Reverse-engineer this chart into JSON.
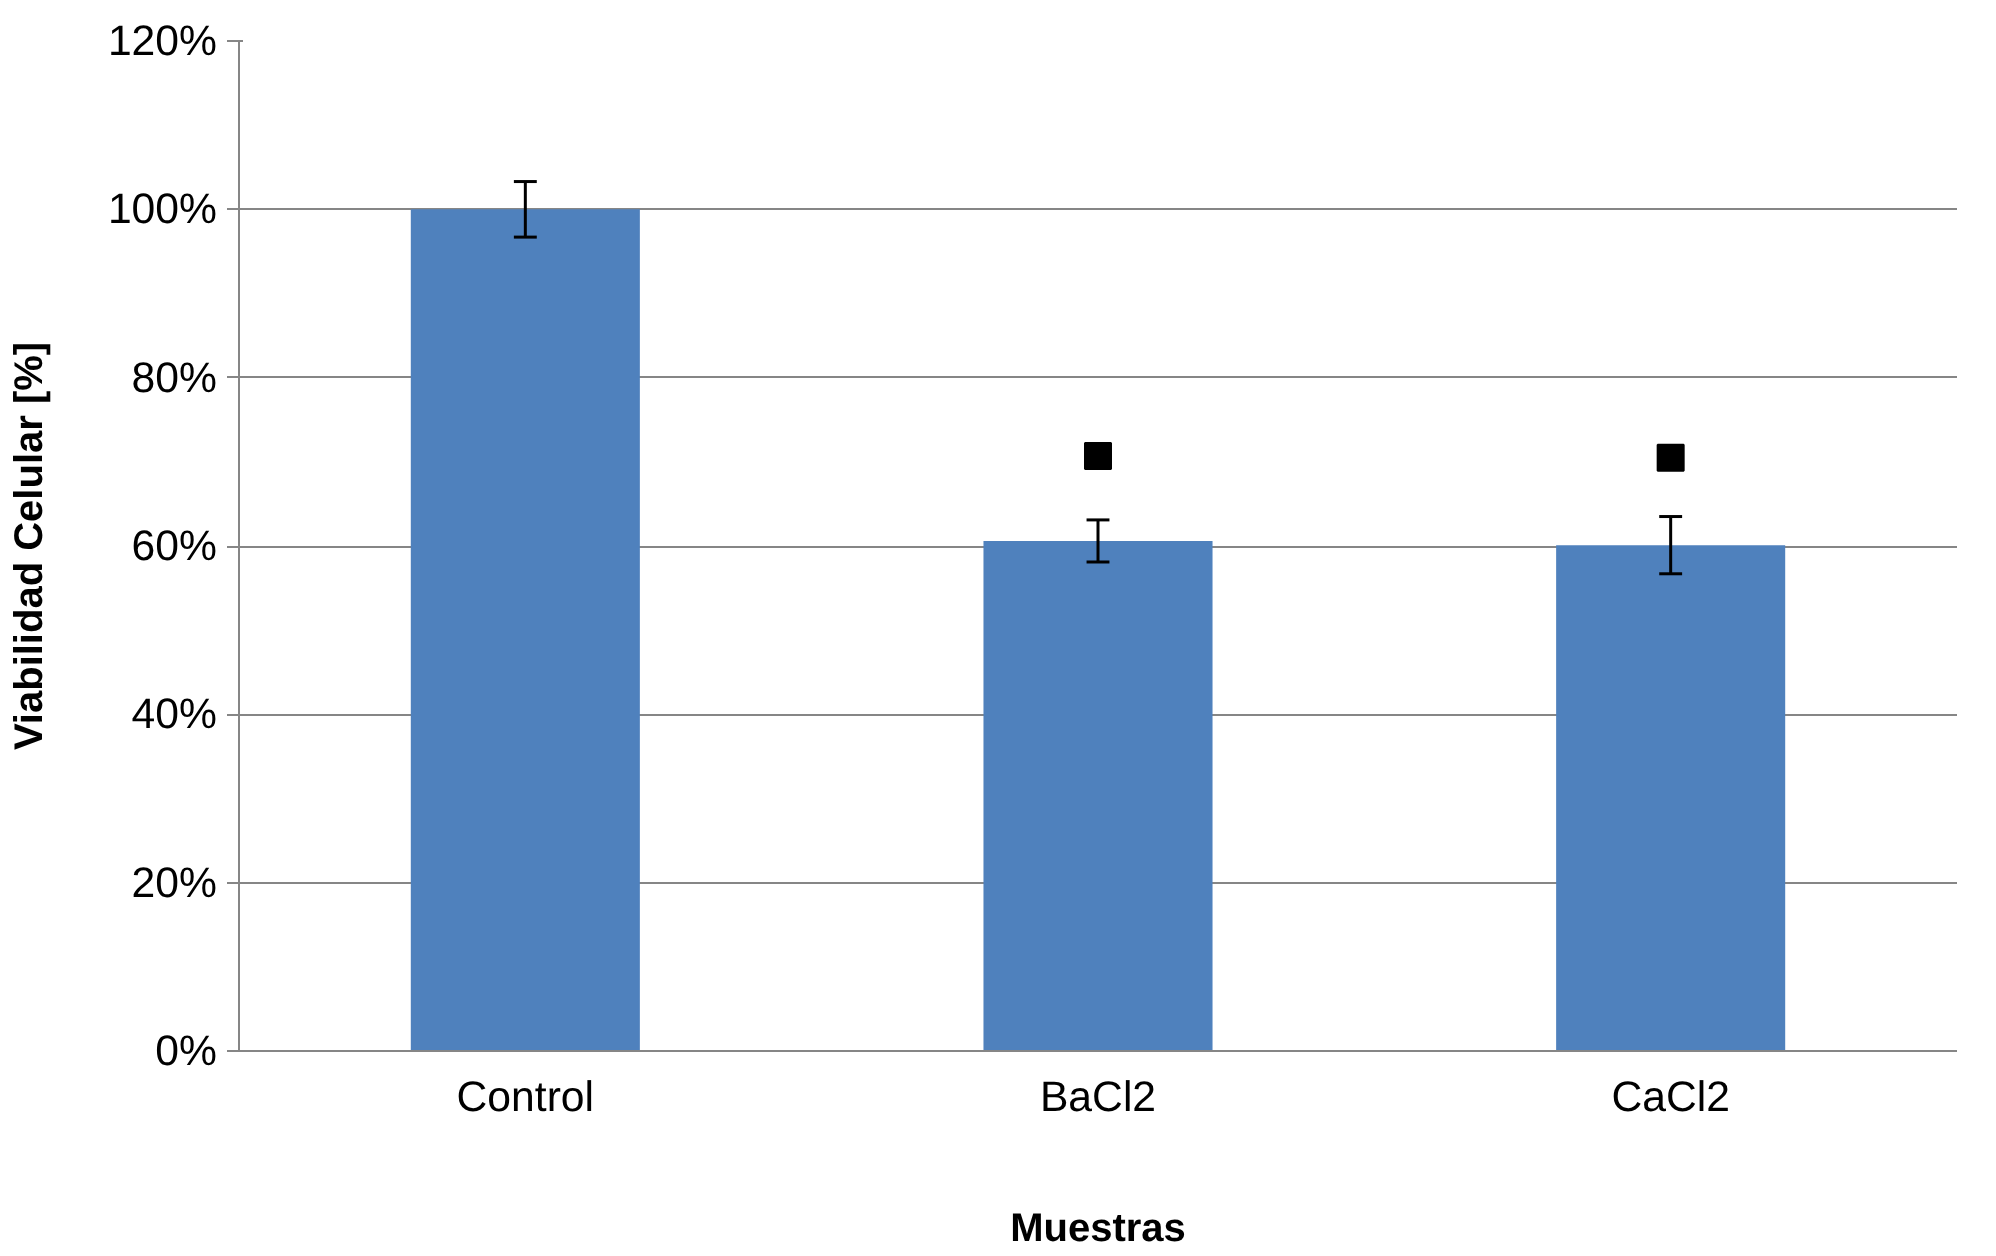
{
  "chart_data": {
    "type": "bar",
    "xlabel": "Muestras",
    "ylabel": "Viabilidad Celular [%]",
    "categories": [
      "Control",
      "BaCl2",
      "CaCl2"
    ],
    "series": [
      {
        "color": "#4f81bd",
        "values": [
          100,
          60.6,
          60.1
        ],
        "errors": [
          3.3,
          2.5,
          3.4
        ]
      },
      {
        "type": "scatter",
        "color": "#000000",
        "x": [
          "BaCl2",
          "CaCl2"
        ],
        "values": [
          70.7,
          70.5
        ],
        "marker": "square"
      }
    ],
    "ylim": [
      0,
      120
    ],
    "yticks": [
      {
        "value": 0,
        "label": "0%"
      },
      {
        "value": 20,
        "label": "20%"
      },
      {
        "value": 40,
        "label": "40%"
      },
      {
        "value": 60,
        "label": "60%"
      },
      {
        "value": 80,
        "label": "80%"
      },
      {
        "value": 100,
        "label": "100%"
      },
      {
        "value": 120,
        "label": "120%"
      }
    ],
    "grid": "y"
  }
}
